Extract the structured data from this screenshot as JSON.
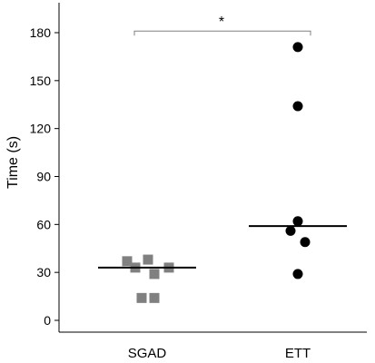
{
  "chart_data": {
    "type": "scatter",
    "ylabel": "Time (s)",
    "xlabel": "",
    "ylim": [
      0,
      195
    ],
    "yticks": [
      0,
      30,
      60,
      90,
      120,
      150,
      180
    ],
    "grid": false,
    "categories": [
      "SGAD",
      "ETT"
    ],
    "series": [
      {
        "category": "SGAD",
        "marker": "square",
        "color": "#808080",
        "values": [
          37,
          38,
          33,
          29,
          33,
          14,
          14
        ],
        "median": 33
      },
      {
        "category": "ETT",
        "marker": "circle",
        "color": "#000000",
        "values": [
          171,
          134,
          62,
          56,
          49,
          29
        ],
        "median": 59
      }
    ],
    "significance": {
      "between": [
        "SGAD",
        "ETT"
      ],
      "label": "*",
      "at": 181
    }
  }
}
